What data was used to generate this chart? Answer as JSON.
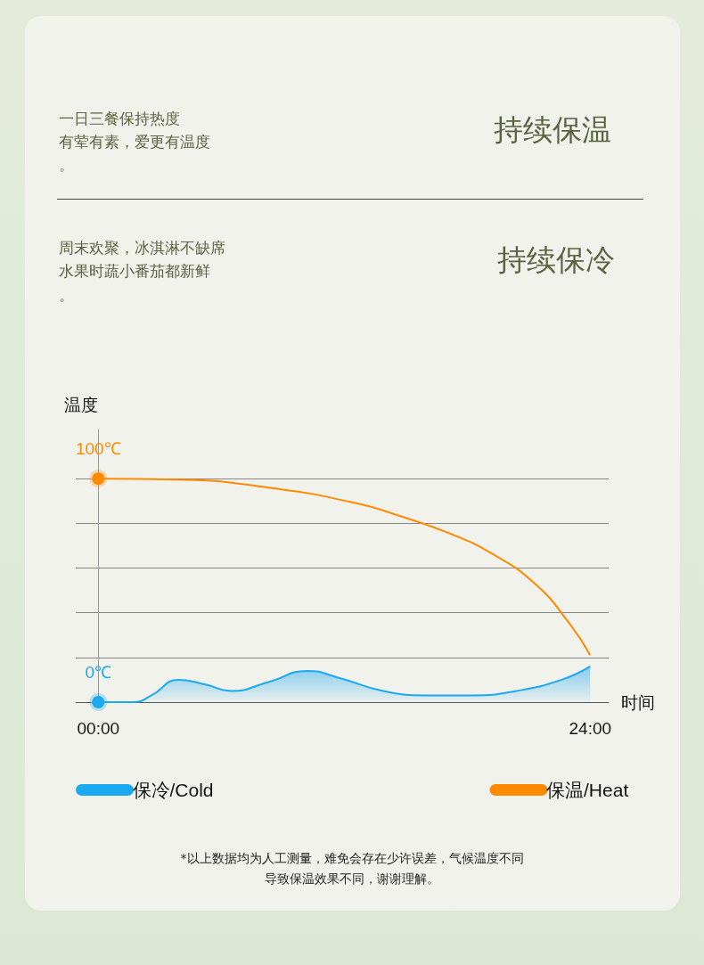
{
  "chart_data": {
    "type": "line",
    "xlabel": "时间",
    "ylabel": "温度",
    "xlim": [
      -1.1,
      24.9
    ],
    "xticks": [
      {
        "value": 0,
        "label": "00:00"
      },
      {
        "value": 24,
        "label": "24:00"
      }
    ],
    "ylim": [
      0,
      122
    ],
    "yticks": [
      {
        "value": 20,
        "label": null
      },
      {
        "value": 40,
        "label": null
      },
      {
        "value": 60,
        "label": null
      },
      {
        "value": 80,
        "label": null
      },
      {
        "value": 100,
        "label": null
      }
    ],
    "tick_labels": "x",
    "grid": "y",
    "legend": "bottom",
    "marker": "none",
    "series": [
      {
        "name": "保冷/Cold",
        "type": "area",
        "color": "#1ba9f2",
        "x": [
          0,
          1.7,
          2.6,
          3.9,
          5.2,
          6.5,
          8.3,
          10.2,
          11.7,
          13.9,
          16.1,
          18.3,
          20.4,
          22.6,
          24
        ],
        "values": [
          0,
          0,
          3,
          10,
          8,
          5,
          9,
          14,
          11,
          5,
          3,
          3,
          5,
          10,
          16
        ],
        "value_labels": [
          "0℃",
          null,
          null,
          null,
          null,
          null,
          null,
          null,
          null,
          null,
          null,
          null,
          null,
          null,
          null
        ]
      },
      {
        "name": "保温/Heat",
        "color": "#ff8a00",
        "x": [
          0,
          3.9,
          8.3,
          12.6,
          14.8,
          17,
          19.1,
          21.3,
          23,
          24
        ],
        "values": [
          100,
          99.6,
          96,
          89,
          83,
          76,
          67,
          53,
          35,
          21
        ],
        "value_labels": [
          "100℃",
          null,
          null,
          null,
          null,
          null,
          null,
          null,
          null,
          null
        ]
      }
    ],
    "annotations": [
      "一日三餐保持热度",
      "持续保温",
      "周末欢聚，冰淇淋不缺席",
      "持续保冷",
      "*以上数据均为人工测量，难免会存在少许误差，气候温度不同",
      "有荤有素，爱更有温度",
      "。",
      "水果时蔬小番茄都新鲜",
      "。",
      "导致保温效果不同，谢谢理解。"
    ]
  }
}
